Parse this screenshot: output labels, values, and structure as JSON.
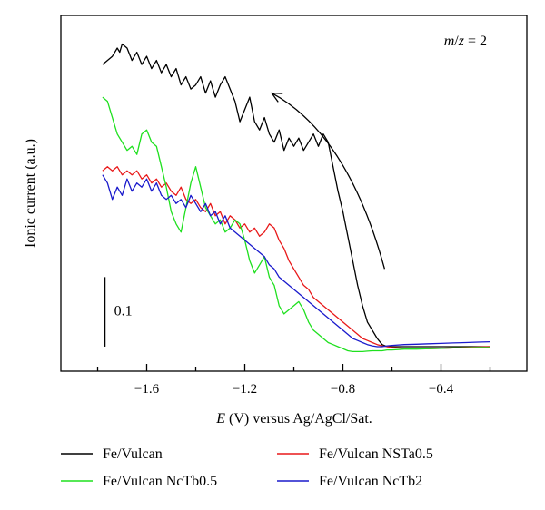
{
  "chart_data": {
    "type": "line",
    "xlabel_italic": "E",
    "xlabel_rest": " (V) versus Ag/AgCl/Sat.",
    "ylabel": "Ionic current (a.u.)",
    "xlim": [
      -1.95,
      -0.05
    ],
    "ylim": [
      -0.06,
      0.81
    ],
    "x_ticks": [
      {
        "value": -1.6,
        "label": "−1.6"
      },
      {
        "value": -1.2,
        "label": "−1.2"
      },
      {
        "value": -0.8,
        "label": "−0.8"
      },
      {
        "value": -0.4,
        "label": "−0.4"
      }
    ],
    "x_minor_ticks": [
      -1.8,
      -1.4,
      -1.0,
      -0.6,
      -0.2
    ],
    "annotation_m_italic": "m",
    "annotation_slash": "/",
    "annotation_z_italic": "z",
    "annotation_rest": " = 2",
    "scale_bar_label": "0.1",
    "scale_bar": {
      "x": -1.77,
      "y_from": 0.0,
      "y_to": 0.17
    },
    "arrow": {
      "from": [
        -0.63,
        0.19
      ],
      "control": [
        -0.78,
        0.52
      ],
      "to": [
        -1.09,
        0.62
      ]
    },
    "legend_position": "bottom",
    "series": [
      {
        "name": "Fe/Vulcan",
        "color": "#000000",
        "x": [
          -1.78,
          -1.76,
          -1.74,
          -1.73,
          -1.72,
          -1.71,
          -1.7,
          -1.68,
          -1.66,
          -1.64,
          -1.62,
          -1.6,
          -1.58,
          -1.56,
          -1.54,
          -1.52,
          -1.5,
          -1.48,
          -1.46,
          -1.44,
          -1.42,
          -1.4,
          -1.38,
          -1.36,
          -1.34,
          -1.32,
          -1.3,
          -1.28,
          -1.26,
          -1.24,
          -1.22,
          -1.2,
          -1.18,
          -1.16,
          -1.14,
          -1.12,
          -1.1,
          -1.08,
          -1.06,
          -1.04,
          -1.02,
          -1.0,
          -0.98,
          -0.96,
          -0.94,
          -0.92,
          -0.9,
          -0.88,
          -0.86,
          -0.84,
          -0.82,
          -0.8,
          -0.78,
          -0.76,
          -0.74,
          -0.72,
          -0.7,
          -0.68,
          -0.66,
          -0.64,
          -0.62,
          -0.6,
          -0.55,
          -0.5,
          -0.45,
          -0.4,
          -0.35,
          -0.3,
          -0.25,
          -0.2
        ],
        "values": [
          0.69,
          0.7,
          0.71,
          0.72,
          0.73,
          0.72,
          0.74,
          0.73,
          0.7,
          0.72,
          0.69,
          0.71,
          0.68,
          0.7,
          0.67,
          0.69,
          0.66,
          0.68,
          0.64,
          0.66,
          0.63,
          0.64,
          0.66,
          0.62,
          0.65,
          0.61,
          0.64,
          0.66,
          0.63,
          0.6,
          0.55,
          0.58,
          0.61,
          0.55,
          0.53,
          0.56,
          0.52,
          0.5,
          0.53,
          0.48,
          0.51,
          0.49,
          0.51,
          0.48,
          0.5,
          0.52,
          0.49,
          0.52,
          0.5,
          0.44,
          0.38,
          0.33,
          0.27,
          0.21,
          0.15,
          0.1,
          0.06,
          0.04,
          0.02,
          0.005,
          0.0,
          0.0,
          0.0,
          0.0,
          0.0,
          0.0,
          0.0,
          0.0,
          0.0,
          0.0
        ]
      },
      {
        "name": "Fe/Vulcan NSTa0.5",
        "color": "#e8191a",
        "x": [
          -1.78,
          -1.76,
          -1.74,
          -1.72,
          -1.7,
          -1.68,
          -1.66,
          -1.64,
          -1.62,
          -1.6,
          -1.58,
          -1.56,
          -1.54,
          -1.52,
          -1.5,
          -1.48,
          -1.46,
          -1.44,
          -1.42,
          -1.4,
          -1.38,
          -1.36,
          -1.34,
          -1.32,
          -1.3,
          -1.28,
          -1.26,
          -1.24,
          -1.22,
          -1.2,
          -1.18,
          -1.16,
          -1.14,
          -1.12,
          -1.1,
          -1.08,
          -1.06,
          -1.04,
          -1.02,
          -1.0,
          -0.98,
          -0.96,
          -0.94,
          -0.92,
          -0.9,
          -0.88,
          -0.86,
          -0.84,
          -0.82,
          -0.8,
          -0.78,
          -0.76,
          -0.74,
          -0.72,
          -0.7,
          -0.68,
          -0.66,
          -0.64,
          -0.62,
          -0.6,
          -0.55,
          -0.5,
          -0.45,
          -0.4,
          -0.35,
          -0.3,
          -0.25,
          -0.2
        ],
        "values": [
          0.43,
          0.44,
          0.43,
          0.44,
          0.42,
          0.43,
          0.42,
          0.43,
          0.41,
          0.42,
          0.4,
          0.41,
          0.39,
          0.4,
          0.38,
          0.37,
          0.39,
          0.36,
          0.35,
          0.36,
          0.34,
          0.33,
          0.35,
          0.32,
          0.33,
          0.3,
          0.32,
          0.31,
          0.29,
          0.3,
          0.28,
          0.29,
          0.27,
          0.28,
          0.3,
          0.29,
          0.26,
          0.24,
          0.21,
          0.19,
          0.17,
          0.15,
          0.14,
          0.12,
          0.11,
          0.1,
          0.09,
          0.08,
          0.07,
          0.06,
          0.05,
          0.04,
          0.03,
          0.02,
          0.015,
          0.01,
          0.005,
          0.002,
          0.0,
          -0.002,
          -0.004,
          -0.005,
          -0.005,
          -0.004,
          -0.003,
          -0.002,
          -0.001,
          0.0
        ]
      },
      {
        "name": "Fe/Vulcan NcTb0.5",
        "color": "#1fe01f",
        "x": [
          -1.78,
          -1.76,
          -1.74,
          -1.72,
          -1.7,
          -1.68,
          -1.66,
          -1.64,
          -1.62,
          -1.6,
          -1.58,
          -1.56,
          -1.54,
          -1.52,
          -1.5,
          -1.48,
          -1.46,
          -1.44,
          -1.42,
          -1.4,
          -1.38,
          -1.36,
          -1.34,
          -1.32,
          -1.3,
          -1.28,
          -1.26,
          -1.24,
          -1.22,
          -1.2,
          -1.18,
          -1.16,
          -1.14,
          -1.12,
          -1.1,
          -1.08,
          -1.06,
          -1.04,
          -1.02,
          -1.0,
          -0.98,
          -0.96,
          -0.94,
          -0.92,
          -0.9,
          -0.88,
          -0.86,
          -0.84,
          -0.82,
          -0.8,
          -0.78,
          -0.76,
          -0.74,
          -0.72,
          -0.7,
          -0.68,
          -0.66,
          -0.64,
          -0.62,
          -0.6,
          -0.55,
          -0.5,
          -0.45,
          -0.4,
          -0.35,
          -0.3,
          -0.25,
          -0.2
        ],
        "values": [
          0.61,
          0.6,
          0.56,
          0.52,
          0.5,
          0.48,
          0.49,
          0.47,
          0.52,
          0.53,
          0.5,
          0.49,
          0.44,
          0.39,
          0.33,
          0.3,
          0.28,
          0.34,
          0.4,
          0.44,
          0.39,
          0.34,
          0.32,
          0.3,
          0.31,
          0.28,
          0.29,
          0.31,
          0.3,
          0.26,
          0.21,
          0.18,
          0.2,
          0.22,
          0.17,
          0.15,
          0.1,
          0.08,
          0.09,
          0.1,
          0.11,
          0.09,
          0.06,
          0.04,
          0.03,
          0.02,
          0.01,
          0.005,
          0.0,
          -0.005,
          -0.01,
          -0.012,
          -0.012,
          -0.012,
          -0.011,
          -0.01,
          -0.01,
          -0.01,
          -0.008,
          -0.008,
          -0.006,
          -0.006,
          -0.005,
          -0.004,
          -0.003,
          -0.003,
          -0.002,
          -0.002
        ]
      },
      {
        "name": "Fe/Vulcan NcTb2",
        "color": "#1a1acc",
        "x": [
          -1.78,
          -1.76,
          -1.74,
          -1.72,
          -1.7,
          -1.68,
          -1.66,
          -1.64,
          -1.62,
          -1.6,
          -1.58,
          -1.56,
          -1.54,
          -1.52,
          -1.5,
          -1.48,
          -1.46,
          -1.44,
          -1.42,
          -1.4,
          -1.38,
          -1.36,
          -1.34,
          -1.32,
          -1.3,
          -1.28,
          -1.26,
          -1.24,
          -1.22,
          -1.2,
          -1.18,
          -1.16,
          -1.14,
          -1.12,
          -1.1,
          -1.08,
          -1.06,
          -1.04,
          -1.02,
          -1.0,
          -0.98,
          -0.96,
          -0.94,
          -0.92,
          -0.9,
          -0.88,
          -0.86,
          -0.84,
          -0.82,
          -0.8,
          -0.78,
          -0.76,
          -0.74,
          -0.72,
          -0.7,
          -0.68,
          -0.66,
          -0.64,
          -0.62,
          -0.6,
          -0.55,
          -0.5,
          -0.45,
          -0.4,
          -0.35,
          -0.3,
          -0.25,
          -0.2
        ],
        "values": [
          0.42,
          0.4,
          0.36,
          0.39,
          0.37,
          0.41,
          0.38,
          0.4,
          0.39,
          0.41,
          0.38,
          0.4,
          0.37,
          0.36,
          0.37,
          0.35,
          0.36,
          0.34,
          0.37,
          0.35,
          0.33,
          0.35,
          0.32,
          0.33,
          0.3,
          0.32,
          0.29,
          0.28,
          0.27,
          0.26,
          0.25,
          0.24,
          0.23,
          0.22,
          0.2,
          0.19,
          0.17,
          0.16,
          0.15,
          0.14,
          0.13,
          0.12,
          0.11,
          0.1,
          0.09,
          0.08,
          0.07,
          0.06,
          0.05,
          0.04,
          0.03,
          0.02,
          0.015,
          0.01,
          0.005,
          0.002,
          0.0,
          0.0,
          0.002,
          0.003,
          0.005,
          0.006,
          0.007,
          0.008,
          0.009,
          0.01,
          0.011,
          0.012
        ]
      }
    ]
  }
}
